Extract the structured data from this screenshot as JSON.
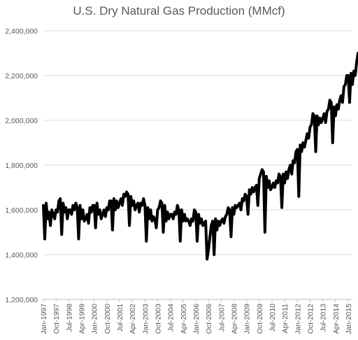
{
  "chart_data": {
    "type": "line",
    "title": "U.S. Dry Natural Gas Production (MMcf)",
    "xlabel": "",
    "ylabel": "",
    "ylim": [
      1200000,
      2400000
    ],
    "grid": true,
    "legend": "none",
    "y_ticks": [
      "1,200,000",
      "1,400,000",
      "1,600,000",
      "1,800,000",
      "2,000,000",
      "2,200,000",
      "2,400,000"
    ],
    "x_ticks": [
      "Jan-1997",
      "Oct-1997",
      "Jul-1998",
      "Apr-1999",
      "Jan-2000",
      "Oct-2000",
      "Jul-2001",
      "Apr-2002",
      "Jan-2003",
      "Oct-2003",
      "Jul-2004",
      "Apr-2005",
      "Jan-2006",
      "Oct-2006",
      "Jul-2007",
      "Apr-2008",
      "Jan-2009",
      "Oct-2009",
      "Jul-2010",
      "Apr-2011",
      "Jan-2012",
      "Oct-2012",
      "Jul-2013",
      "Apr-2014",
      "Jan-2015"
    ],
    "colors": {
      "line": "#000000"
    },
    "series": [
      {
        "x_start": "Jan-1997",
        "frequency": "monthly",
        "values": [
          1620000,
          1470000,
          1630000,
          1560000,
          1590000,
          1530000,
          1600000,
          1580000,
          1560000,
          1600000,
          1590000,
          1640000,
          1650000,
          1490000,
          1630000,
          1590000,
          1610000,
          1560000,
          1600000,
          1600000,
          1580000,
          1620000,
          1600000,
          1630000,
          1610000,
          1470000,
          1620000,
          1560000,
          1600000,
          1550000,
          1560000,
          1580000,
          1540000,
          1610000,
          1590000,
          1620000,
          1620000,
          1520000,
          1630000,
          1580000,
          1600000,
          1560000,
          1580000,
          1600000,
          1570000,
          1610000,
          1600000,
          1640000,
          1640000,
          1510000,
          1650000,
          1600000,
          1640000,
          1610000,
          1630000,
          1650000,
          1620000,
          1670000,
          1660000,
          1680000,
          1670000,
          1530000,
          1660000,
          1620000,
          1640000,
          1600000,
          1620000,
          1630000,
          1590000,
          1630000,
          1620000,
          1650000,
          1620000,
          1460000,
          1610000,
          1560000,
          1600000,
          1550000,
          1570000,
          1560000,
          1520000,
          1600000,
          1610000,
          1640000,
          1630000,
          1500000,
          1620000,
          1550000,
          1590000,
          1560000,
          1580000,
          1580000,
          1560000,
          1590000,
          1580000,
          1620000,
          1600000,
          1460000,
          1600000,
          1550000,
          1580000,
          1550000,
          1560000,
          1550000,
          1530000,
          1560000,
          1550000,
          1600000,
          1590000,
          1460000,
          1580000,
          1540000,
          1560000,
          1530000,
          1540000,
          1550000,
          1380000,
          1420000,
          1480000,
          1530000,
          1550000,
          1400000,
          1560000,
          1510000,
          1550000,
          1530000,
          1550000,
          1560000,
          1540000,
          1570000,
          1580000,
          1610000,
          1600000,
          1480000,
          1610000,
          1580000,
          1620000,
          1610000,
          1620000,
          1630000,
          1600000,
          1650000,
          1640000,
          1670000,
          1660000,
          1580000,
          1690000,
          1670000,
          1700000,
          1680000,
          1700000,
          1710000,
          1620000,
          1740000,
          1760000,
          1780000,
          1770000,
          1500000,
          1750000,
          1700000,
          1730000,
          1690000,
          1700000,
          1720000,
          1700000,
          1730000,
          1720000,
          1760000,
          1750000,
          1610000,
          1760000,
          1720000,
          1770000,
          1740000,
          1780000,
          1800000,
          1760000,
          1820000,
          1810000,
          1860000,
          1870000,
          1660000,
          1890000,
          1860000,
          1900000,
          1880000,
          1910000,
          1940000,
          1920000,
          1970000,
          1980000,
          2030000,
          2020000,
          1860000,
          2020000,
          1980000,
          2010000,
          1990000,
          2010000,
          2030000,
          1990000,
          2040000,
          2050000,
          2090000,
          2080000,
          1900000,
          2060000,
          2020000,
          2070000,
          2050000,
          2090000,
          2110000,
          2080000,
          2150000,
          2160000,
          2200000,
          2200000,
          2080000,
          2210000,
          2160000,
          2220000,
          2200000,
          2260000,
          2300000,
          2290000,
          2310000,
          2250000,
          2280000
        ]
      }
    ]
  }
}
